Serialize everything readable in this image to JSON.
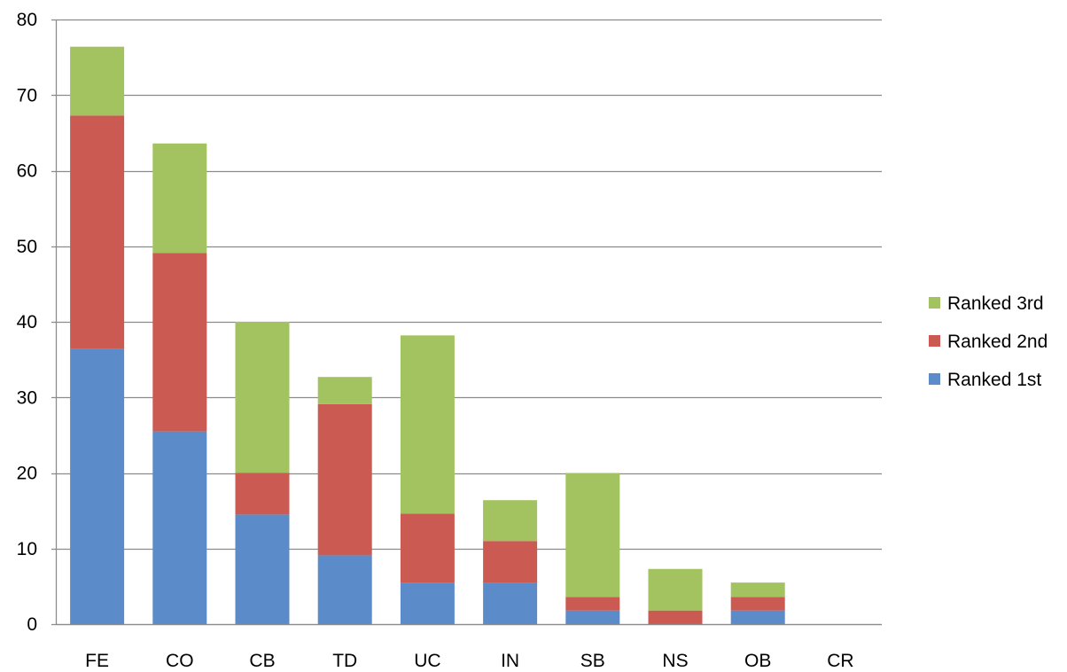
{
  "chart_data": {
    "type": "bar",
    "stacked": true,
    "title": "",
    "xlabel": "",
    "ylabel": "",
    "categories": [
      "FE",
      "CO",
      "CB",
      "TD",
      "UC",
      "IN",
      "SB",
      "NS",
      "OB",
      "CR"
    ],
    "series": [
      {
        "name": "Ranked 1st",
        "color": "#5B8BC9",
        "values": [
          36.4,
          25.5,
          14.5,
          9.1,
          5.5,
          5.5,
          1.8,
          0,
          1.8,
          0
        ]
      },
      {
        "name": "Ranked 2nd",
        "color": "#CB5A52",
        "values": [
          30.9,
          23.6,
          5.5,
          20.0,
          9.1,
          5.5,
          1.8,
          1.8,
          1.8,
          0
        ]
      },
      {
        "name": "Ranked 3rd",
        "color": "#A2C35F",
        "values": [
          9.1,
          14.5,
          20.0,
          3.6,
          23.6,
          5.4,
          16.4,
          5.5,
          1.9,
          0
        ]
      }
    ],
    "ylim": [
      0,
      80
    ],
    "yticks": [
      "0",
      "10",
      "20",
      "30",
      "40",
      "50",
      "60",
      "70",
      "80"
    ],
    "grid": true,
    "legend_position": "right",
    "legend_order": [
      "Ranked 3rd",
      "Ranked 2nd",
      "Ranked 1st"
    ],
    "gridline_color": "#8C8C8C",
    "axis_color": "#8C8C8C"
  }
}
